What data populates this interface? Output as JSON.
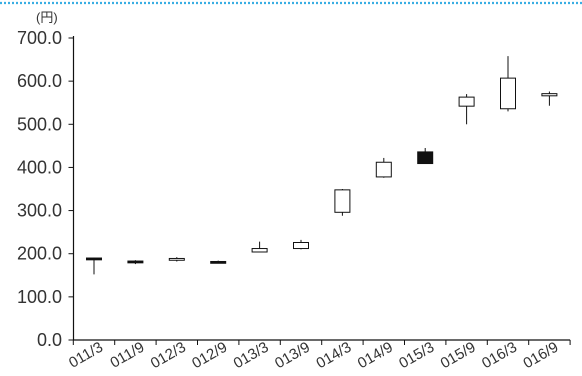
{
  "chart_data": {
    "type": "candlestick",
    "unit_label": "(円)",
    "categories": [
      "011/3",
      "011/9",
      "012/3",
      "012/9",
      "013/3",
      "013/9",
      "014/3",
      "014/9",
      "015/3",
      "015/9",
      "016/3",
      "016/9"
    ],
    "open": [
      190,
      183,
      185,
      182,
      204,
      212,
      296,
      378,
      436,
      542,
      536,
      566
    ],
    "high": [
      191,
      185,
      192,
      184,
      228,
      232,
      350,
      422,
      445,
      570,
      658,
      576
    ],
    "low": [
      152,
      176,
      182,
      179,
      204,
      210,
      288,
      376,
      408,
      500,
      530,
      543
    ],
    "close": [
      186,
      181,
      189,
      180,
      212,
      226,
      348,
      412,
      409,
      563,
      607,
      571
    ],
    "ylim": [
      0,
      700
    ],
    "y_ticks": [
      "0.0",
      "100.0",
      "200.0",
      "300.0",
      "400.0",
      "500.0",
      "600.0",
      "700.0"
    ],
    "y_tick_values": [
      0,
      100,
      200,
      300,
      400,
      500,
      600,
      700
    ],
    "grid": false,
    "colors": {
      "up_fill": "#ffffff",
      "down_fill": "#111111",
      "line": "#111111",
      "top_rule": "#3aaee3"
    }
  }
}
